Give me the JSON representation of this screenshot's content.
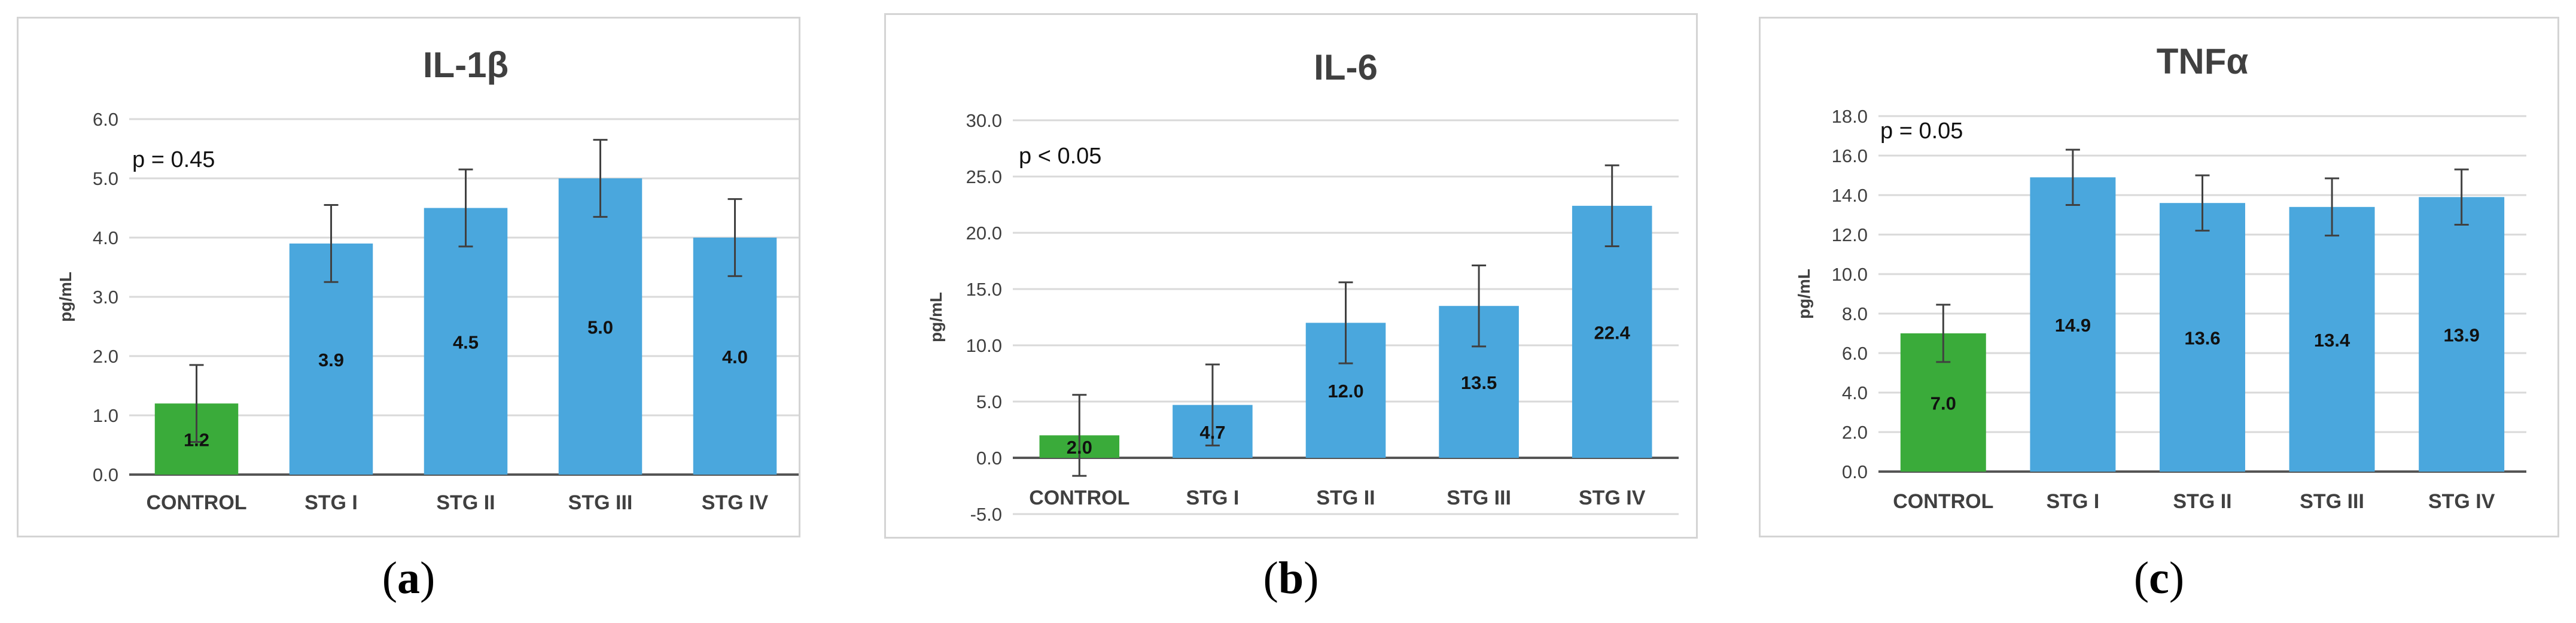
{
  "colors": {
    "control": "#3aab3a",
    "stage": "#4aa7dd",
    "grid": "#d9d9d9",
    "axis": "#555555",
    "text": "#404040",
    "error": "#404040"
  },
  "chart_data": [
    {
      "type": "bar",
      "title": "IL-1β",
      "ylabel": "pg/mL",
      "annotation": "p = 0.45",
      "caption_letter": "a",
      "categories": [
        "CONTROL",
        "STG I",
        "STG II",
        "STG III",
        "STG IV"
      ],
      "values": [
        1.2,
        3.9,
        4.5,
        5.0,
        4.0
      ],
      "value_labels": [
        "1.2",
        "3.9",
        "4.5",
        "5.0",
        "4.0"
      ],
      "errors": [
        0.65,
        0.65,
        0.65,
        0.65,
        0.65
      ],
      "ylim": [
        0,
        6
      ],
      "yticks": [
        0,
        1,
        2,
        3,
        4,
        5,
        6
      ],
      "ytick_labels": [
        "0.0",
        "1.0",
        "2.0",
        "3.0",
        "4.0",
        "5.0",
        "6.0"
      ],
      "grid": true
    },
    {
      "type": "bar",
      "title": "IL-6",
      "ylabel": "pg/mL",
      "annotation": "p < 0.05",
      "caption_letter": "b",
      "categories": [
        "CONTROL",
        "STG I",
        "STG II",
        "STG III",
        "STG IV"
      ],
      "values": [
        2.0,
        4.7,
        12.0,
        13.5,
        22.4
      ],
      "value_labels": [
        "2.0",
        "4.7",
        "12.0",
        "13.5",
        "22.4"
      ],
      "errors": [
        3.6,
        3.6,
        3.6,
        3.6,
        3.6
      ],
      "ylim": [
        -5,
        30
      ],
      "yticks": [
        -5,
        0,
        5,
        10,
        15,
        20,
        25,
        30
      ],
      "ytick_labels": [
        "-5.0",
        "0.0",
        "5.0",
        "10.0",
        "15.0",
        "20.0",
        "25.0",
        "30.0"
      ],
      "grid": true
    },
    {
      "type": "bar",
      "title": "TNFα",
      "ylabel": "pg/mL",
      "annotation": "p = 0.05",
      "caption_letter": "c",
      "categories": [
        "CONTROL",
        "STG I",
        "STG II",
        "STG III",
        "STG IV"
      ],
      "values": [
        7.0,
        14.9,
        13.6,
        13.4,
        13.9
      ],
      "value_labels": [
        "7.0",
        "14.9",
        "13.6",
        "13.4",
        "13.9"
      ],
      "errors": [
        1.45,
        1.4,
        1.4,
        1.45,
        1.4
      ],
      "ylim": [
        0,
        18
      ],
      "yticks": [
        0,
        2,
        4,
        6,
        8,
        10,
        12,
        14,
        16,
        18
      ],
      "ytick_labels": [
        "0.0",
        "2.0",
        "4.0",
        "6.0",
        "8.0",
        "10.0",
        "12.0",
        "14.0",
        "16.0",
        "18.0"
      ],
      "grid": true
    }
  ]
}
